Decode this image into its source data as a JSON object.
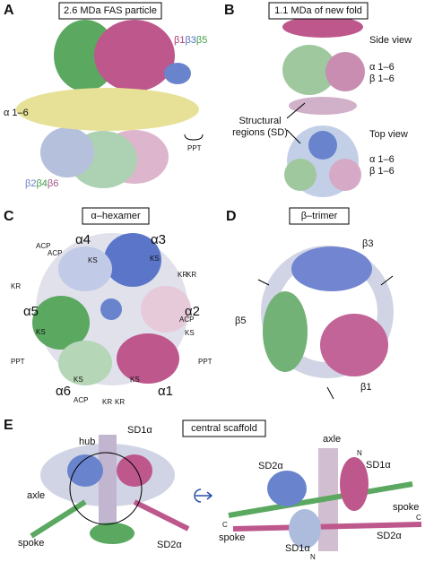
{
  "panel_a": {
    "label": "A",
    "title": "2.6 MDa FAS particle",
    "beta_top": [
      "β1",
      "β3",
      "β5"
    ],
    "alpha": "α 1–6",
    "ppt": "PPT",
    "beta_bottom": [
      "β2",
      "β4",
      "β6"
    ]
  },
  "panel_b": {
    "label": "B",
    "title": "1.1 MDa of new fold",
    "side_view": "Side view",
    "side_alpha": "α 1–6",
    "side_beta": "β 1–6",
    "regions": [
      "Structural",
      "regions (SD)"
    ],
    "top_view": "Top view",
    "top_alpha": "α 1–6",
    "top_beta": "β 1–6"
  },
  "panel_c": {
    "label": "C",
    "title": "α–hexamer",
    "subunits": [
      "α1",
      "α2",
      "α3",
      "α4",
      "α5",
      "α6"
    ],
    "domains": [
      "ACP",
      "KS",
      "KS",
      "KR",
      "KR",
      "KR",
      "ACP",
      "KS",
      "KS",
      "PPT",
      "PPT",
      "KS",
      "KS",
      "ACP",
      "KR",
      "KR",
      "ACP"
    ]
  },
  "panel_d": {
    "label": "D",
    "title": "β–trimer",
    "subunits": [
      "β1",
      "β3",
      "β5"
    ]
  },
  "panel_e": {
    "label": "E",
    "title": "central scaffold",
    "left": [
      "hub",
      "SD1α",
      "axle",
      "spoke",
      "SD2α"
    ],
    "right": [
      "axle",
      "N",
      "SD1α",
      "SD2α",
      "spoke",
      "C",
      "spoke",
      "C",
      "SD1α",
      "N",
      "SD2α"
    ]
  }
}
